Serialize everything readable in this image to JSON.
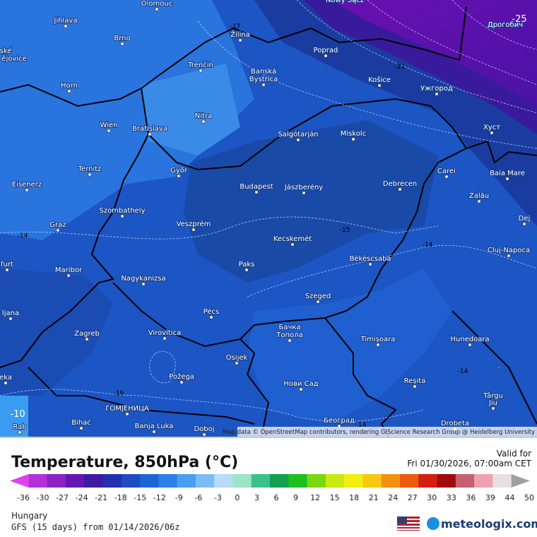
{
  "map": {
    "attribution": "Map data © OpenStreetMap contributors, rendering GIScience Research Group @ Heidelberg University",
    "cities": [
      "Olomouc",
      "Jihlava",
      "Brno",
      "Žilina",
      "Nowy Sącz",
      "Дрогобич",
      "ské",
      "ějovice",
      "Trenčín",
      "Banská",
      "Bystrica",
      "Poprad",
      "Košice",
      "Ужгород",
      "Horn",
      "Nitra",
      "Wien",
      "Bratislava",
      "Salgótarján",
      "Miskolc",
      "Хуст",
      "Ternitz",
      "Győr",
      "Carei",
      "Baia Mare",
      "Eisenerz",
      "Budapest",
      "Jászberény",
      "Debrecen",
      "Zalău",
      "Szombathely",
      "Dej",
      "Graz",
      "Veszprém",
      "Kecskemét",
      "Cluj-Napoca",
      "furt",
      "Paks",
      "Békéscsaba",
      "Maribor",
      "Nagykanizsa",
      "Szeged",
      "ljana",
      "Pécs",
      "Бачка",
      "Топола",
      "Zagreb",
      "Virovitica",
      "Timișoara",
      "Hunedoara",
      "Osijek",
      "Požega",
      "eka",
      "Нови Сад",
      "Reșita",
      "Târgu",
      "Jiu",
      "ГОМЈЕНИЦА",
      "Bihać",
      "Banja Luka",
      "Doboj",
      "Београд",
      "Drobeta",
      "Rab"
    ],
    "contour_labels": [
      "-25",
      "-17",
      "-21",
      "-15",
      "-14",
      "-14",
      "-14",
      "-16",
      "-14",
      "-10"
    ]
  },
  "footer": {
    "title": "Temperature, 850hPa (°C)",
    "valid_label": "Valid for",
    "valid_time": "Fri 01/30/2026, 07:00am CET",
    "region": "Hungary",
    "model": "GFS (15 days) from 01/14/2026/06z",
    "brand": "meteologix.com"
  },
  "colorbar": {
    "ticks": [
      -36,
      -30,
      -27,
      -24,
      -21,
      -18,
      -15,
      -12,
      -9,
      -6,
      -3,
      0,
      3,
      6,
      9,
      12,
      15,
      18,
      21,
      24,
      27,
      30,
      33,
      36,
      39,
      44,
      50
    ],
    "colors": [
      "#e040f0",
      "#b430d8",
      "#8a22c4",
      "#6616b0",
      "#3e1aa0",
      "#2030b0",
      "#1c4cc0",
      "#1e64d4",
      "#2a80e8",
      "#4a9ef0",
      "#7cbcf4",
      "#b8dcf8",
      "#9ae4c8",
      "#3cc08a",
      "#10a050",
      "#1cc020",
      "#7ad810",
      "#c8e810",
      "#f0f010",
      "#f8c810",
      "#f49010",
      "#ec5a10",
      "#d41e10",
      "#a00a10",
      "#c86070",
      "#f0a0b0",
      "#e8e0e0",
      "#a0a0a0"
    ]
  }
}
